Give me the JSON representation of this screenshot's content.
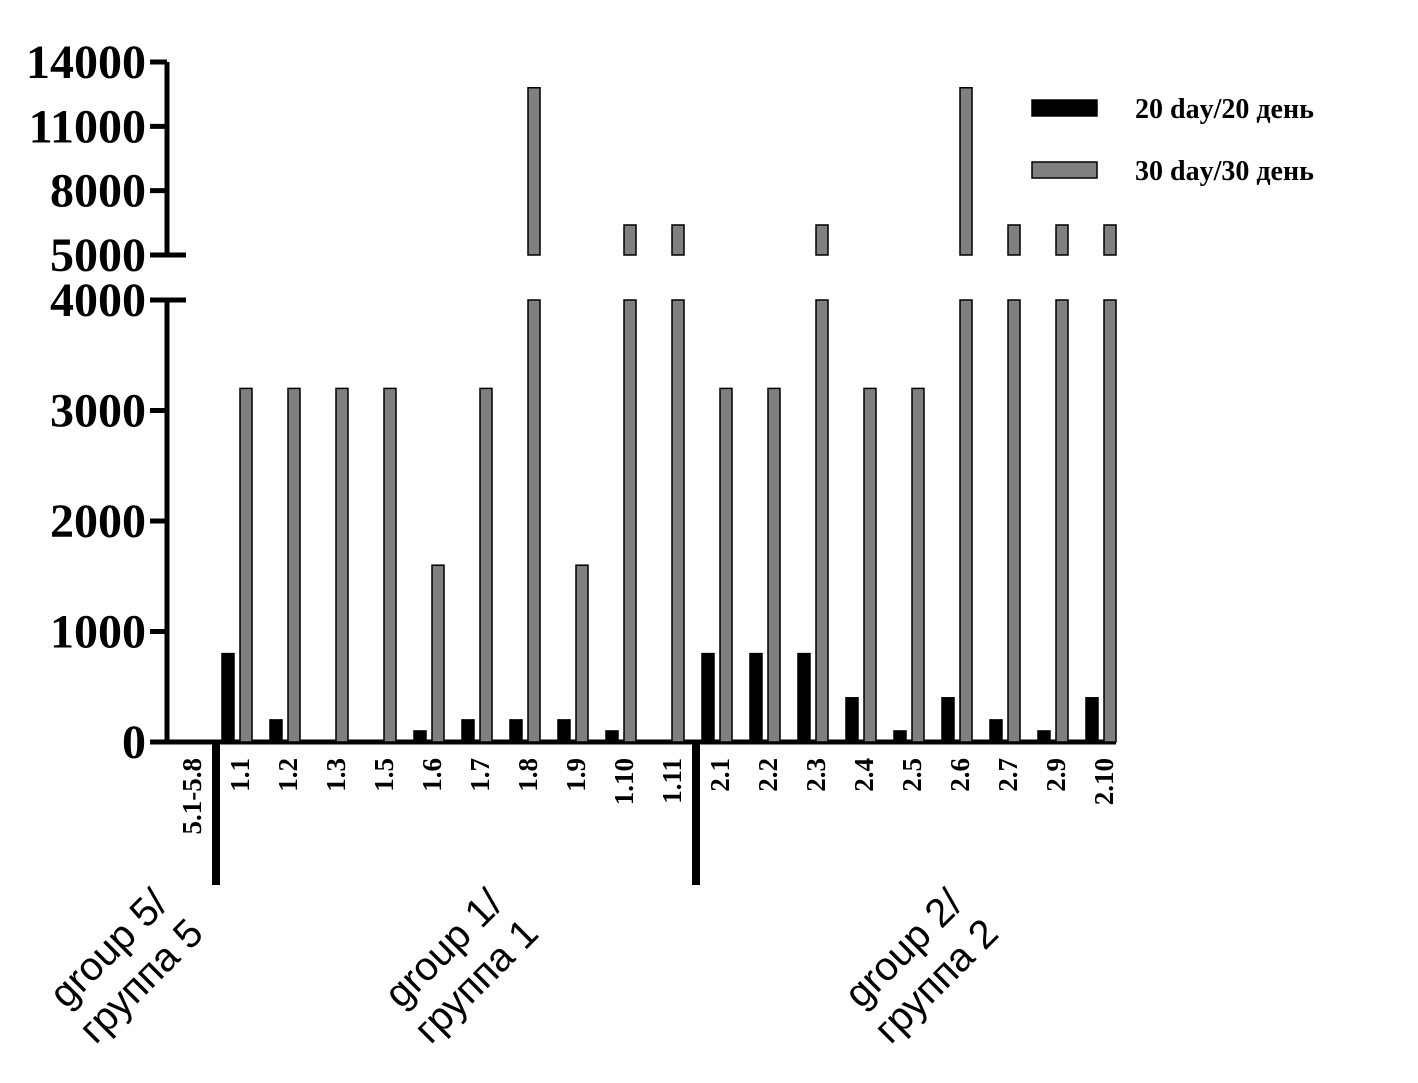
{
  "chart_data": {
    "type": "bar",
    "categories": [
      "5.1-5.8",
      "1.1",
      "1.2",
      "1.3",
      "1.5",
      "1.6",
      "1.7",
      "1.8",
      "1.9",
      "1.10",
      "1.11",
      "2.1",
      "2.2",
      "2.3",
      "2.4",
      "2.5",
      "2.6",
      "2.7",
      "2.9",
      "2.10"
    ],
    "series": [
      {
        "name": "20 day/20 день",
        "color": "#000000",
        "values": [
          0,
          800,
          200,
          0,
          0,
          100,
          200,
          200,
          200,
          100,
          0,
          800,
          800,
          800,
          400,
          100,
          400,
          200,
          100,
          400
        ]
      },
      {
        "name": "30 day/30 день",
        "color": "#808080",
        "values": [
          0,
          3200,
          3200,
          3200,
          3200,
          1600,
          3200,
          12800,
          1600,
          6400,
          6400,
          3200,
          3200,
          6400,
          3200,
          3200,
          12800,
          6400,
          6400,
          6400
        ]
      }
    ],
    "ylim": [
      0,
      14000
    ],
    "y_break": [
      4000,
      5000
    ],
    "yticks": [
      0,
      1000,
      2000,
      3000,
      4000,
      5000,
      8000,
      11000,
      14000
    ],
    "groups": [
      [
        "group 5/",
        "группа 5"
      ],
      [
        "group 1/",
        "группа 1"
      ],
      [
        "group 2/",
        "группа 2"
      ]
    ],
    "legend": "upper right"
  }
}
